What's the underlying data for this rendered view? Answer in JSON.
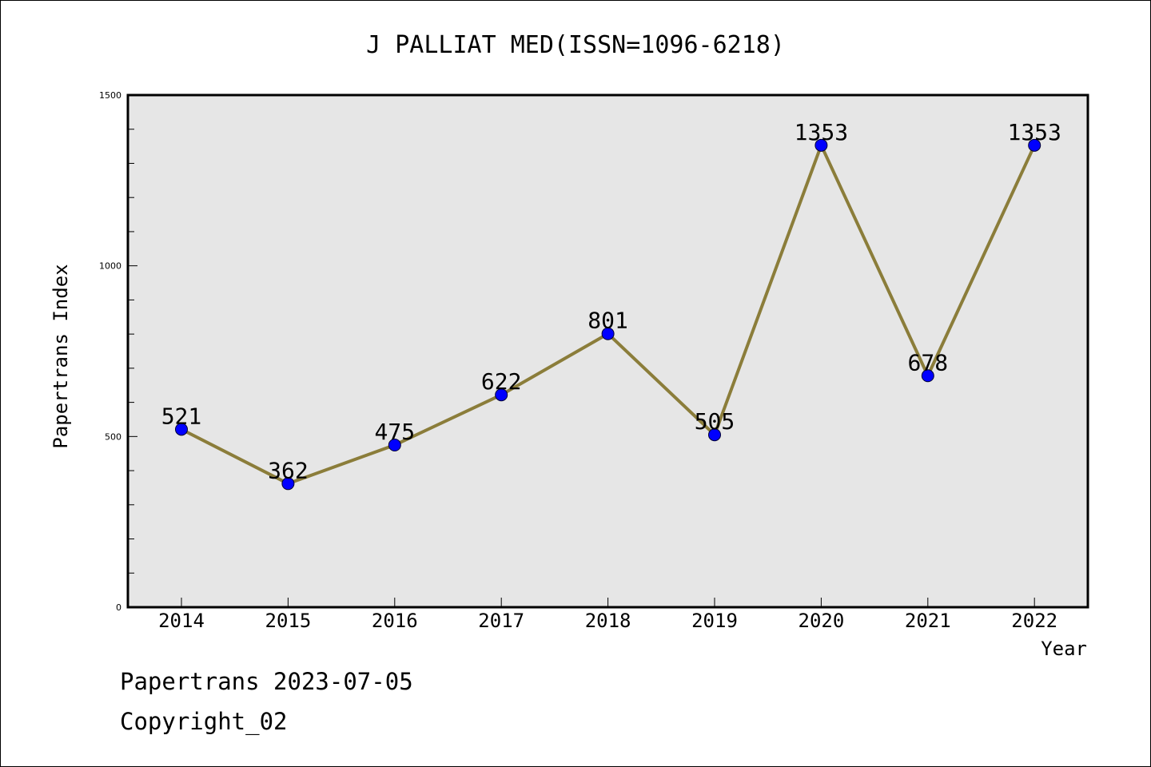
{
  "chart_data": {
    "type": "line",
    "title": "J PALLIAT MED(ISSN=1096-6218)",
    "xlabel": "Year",
    "ylabel": "Papertrans Index",
    "categories": [
      "2014",
      "2015",
      "2016",
      "2017",
      "2018",
      "2019",
      "2020",
      "2021",
      "2022"
    ],
    "values": [
      521,
      362,
      475,
      622,
      801,
      505,
      1353,
      678,
      1353
    ],
    "data_labels": [
      "521",
      "362",
      "475",
      "622",
      "801",
      "505",
      "1353",
      "678",
      "1353"
    ],
    "ylim": [
      0,
      1500
    ],
    "yticks": [
      "0",
      "500",
      "1000",
      "1500"
    ],
    "grid": false,
    "legend": "none",
    "colors": {
      "line": "#8b7d3a",
      "marker": "#0000ff",
      "plot_bg": "#e6e6e6"
    }
  },
  "footer": {
    "line1": "Papertrans 2023-07-05",
    "line2": "Copyright_02"
  }
}
